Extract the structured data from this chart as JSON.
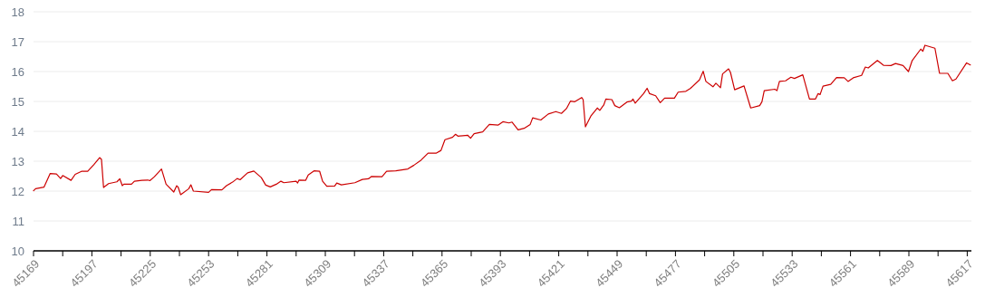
{
  "chart_data": {
    "type": "line",
    "grid": "y",
    "line_style": "solid",
    "marker": "none",
    "xlim": [
      45169,
      45619
    ],
    "xticks": [
      45169,
      {
        "value": 45183,
        "label": null
      },
      45197,
      {
        "value": 45211,
        "label": null
      },
      45225,
      {
        "value": 45239,
        "label": null
      },
      45253,
      {
        "value": 45267,
        "label": null
      },
      45281,
      {
        "value": 45295,
        "label": null
      },
      45309,
      {
        "value": 45323,
        "label": null
      },
      45337,
      {
        "value": 45351,
        "label": null
      },
      45365,
      {
        "value": 45379,
        "label": null
      },
      45393,
      {
        "value": 45407,
        "label": null
      },
      45421,
      {
        "value": 45435,
        "label": null
      },
      45449,
      {
        "value": 45463,
        "label": null
      },
      45477,
      {
        "value": 45491,
        "label": null
      },
      45505,
      {
        "value": 45519,
        "label": null
      },
      45533,
      {
        "value": 45547,
        "label": null
      },
      45561,
      {
        "value": 45575,
        "label": null
      },
      45589,
      {
        "value": 45603,
        "label": null
      },
      45617
    ],
    "ylim": [
      10,
      18
    ],
    "yticks": [
      10,
      11,
      12,
      13,
      14,
      15,
      16,
      17,
      18
    ],
    "series": [
      {
        "color": "#cc0000",
        "x": [
          45169,
          45170,
          45174,
          45177,
          45180,
          45182,
          45183,
          45187,
          45189,
          45192,
          45195,
          45198,
          45200.7,
          45201.6,
          45202.6,
          45205,
          45209,
          45210.4,
          45211.6,
          45212.3,
          45216,
          45217.4,
          45221,
          45223.9,
          45224.8,
          45227,
          45230.4,
          45232.6,
          45236.3,
          45237.7,
          45238.4,
          45239.6,
          45243.5,
          45244.5,
          45245.7,
          45253,
          45254.4,
          45259.4,
          45261.6,
          45264.5,
          45266.7,
          45268.1,
          45271.7,
          45274.7,
          45278.3,
          45280.4,
          45282.6,
          45285.5,
          45287.7,
          45289.1,
          45295,
          45295.7,
          45296.4,
          45299.6,
          45300.8,
          45303.7,
          45306.3,
          45307.7,
          45309.7,
          45313.5,
          45314.5,
          45316.7,
          45323.2,
          45326.8,
          45329.7,
          45331.2,
          45336.2,
          45338.4,
          45342.8,
          45348.6,
          45351.4,
          45355,
          45358.3,
          45362.3,
          45364.5,
          45366.4,
          45370,
          45371.5,
          45372.6,
          45377.3,
          45378.7,
          45380.4,
          45384.5,
          45387.7,
          45392,
          45394.2,
          45397.1,
          45398.6,
          45401.5,
          45404.4,
          45407.3,
          45408.5,
          45412.4,
          45416,
          45419.6,
          45422.3,
          45424.7,
          45426.6,
          45428.7,
          45432,
          45432.7,
          45433.8,
          45436.4,
          45439.5,
          45440.7,
          45442.6,
          45443.6,
          45446.5,
          45447.9,
          45450.1,
          45453.7,
          45455.9,
          45456.6,
          45457.7,
          45461.7,
          45463.4,
          45464.6,
          45467.5,
          45469.7,
          45471.8,
          45476.5,
          45478.3,
          45482,
          45484.1,
          45488.5,
          45490.3,
          45491.6,
          45495,
          45496.4,
          45498.6,
          45499.6,
          45502.5,
          45503.4,
          45505.4,
          45509.9,
          45513.1,
          45517.4,
          45518.5,
          45519.6,
          45524.7,
          45525.7,
          45526.9,
          45529.8,
          45532.4,
          45534.1,
          45538.1,
          45541.3,
          45544.2,
          45545.4,
          45546.4,
          45547.8,
          45551.5,
          45554.3,
          45558,
          45559.8,
          45562.3,
          45566.3,
          45568.1,
          45569.5,
          45573.9,
          45576.8,
          45580.4,
          45582.6,
          45586.2,
          45588.8,
          45590.6,
          45594.7,
          45595.7,
          45596.7,
          45601.5,
          45603.7,
          45607.7,
          45609.9,
          45611.6,
          45616.7,
          45618.5
        ],
        "values": [
          12.01,
          12.08,
          12.13,
          12.59,
          12.57,
          12.42,
          12.52,
          12.36,
          12.56,
          12.66,
          12.66,
          12.89,
          13.12,
          13.06,
          12.12,
          12.25,
          12.31,
          12.41,
          12.18,
          12.23,
          12.23,
          12.33,
          12.36,
          12.37,
          12.35,
          12.48,
          12.74,
          12.23,
          11.97,
          12.18,
          12.13,
          11.88,
          12.08,
          12.21,
          12.0,
          11.96,
          12.05,
          12.04,
          12.18,
          12.3,
          12.42,
          12.38,
          12.61,
          12.67,
          12.45,
          12.2,
          12.14,
          12.23,
          12.33,
          12.28,
          12.33,
          12.27,
          12.37,
          12.36,
          12.54,
          12.68,
          12.66,
          12.33,
          12.16,
          12.17,
          12.27,
          12.21,
          12.28,
          12.39,
          12.41,
          12.49,
          12.48,
          12.66,
          12.68,
          12.74,
          12.86,
          13.04,
          13.27,
          13.27,
          13.36,
          13.72,
          13.8,
          13.9,
          13.84,
          13.87,
          13.77,
          13.92,
          13.98,
          14.23,
          14.21,
          14.32,
          14.28,
          14.31,
          14.05,
          14.1,
          14.23,
          14.45,
          14.38,
          14.58,
          14.66,
          14.6,
          14.76,
          15.01,
          14.99,
          15.13,
          15.06,
          14.15,
          14.51,
          14.78,
          14.7,
          14.88,
          15.08,
          15.06,
          14.86,
          14.79,
          14.98,
          15.01,
          15.08,
          14.94,
          15.26,
          15.44,
          15.26,
          15.19,
          14.96,
          15.11,
          15.11,
          15.31,
          15.34,
          15.43,
          15.72,
          16.01,
          15.67,
          15.49,
          15.61,
          15.46,
          15.92,
          16.09,
          15.97,
          15.39,
          15.52,
          14.78,
          14.86,
          14.99,
          15.36,
          15.41,
          15.36,
          15.67,
          15.69,
          15.81,
          15.77,
          15.89,
          15.08,
          15.08,
          15.26,
          15.23,
          15.51,
          15.57,
          15.8,
          15.79,
          15.67,
          15.79,
          15.87,
          16.15,
          16.12,
          16.37,
          16.21,
          16.2,
          16.27,
          16.2,
          16.0,
          16.37,
          16.75,
          16.68,
          16.88,
          16.78,
          15.94,
          15.94,
          15.69,
          15.75,
          16.29,
          16.22
        ]
      }
    ]
  }
}
